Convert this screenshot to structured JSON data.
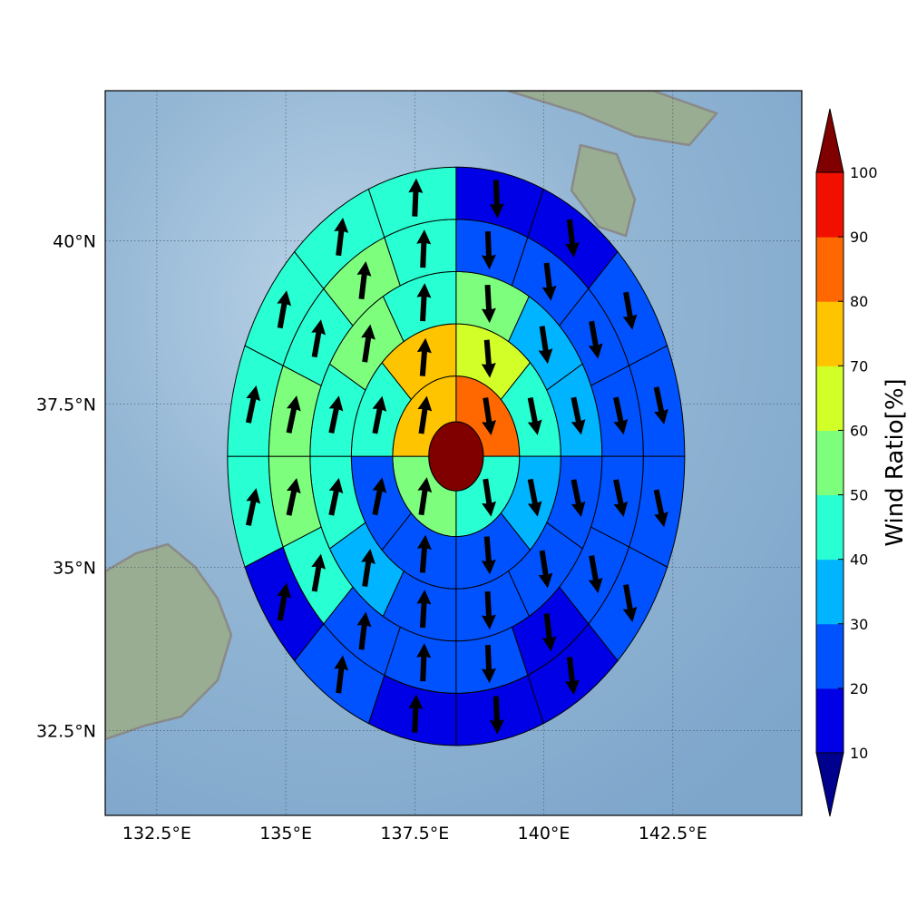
{
  "chart_data": {
    "type": "heatmap",
    "projection": "polar sectors on lon/lat map",
    "xlim": [
      131.5,
      145.0
    ],
    "ylim": [
      31.2,
      42.3
    ],
    "grid": true,
    "x_ticks": [
      {
        "value": 132.5,
        "label": "132.5°E"
      },
      {
        "value": 135.0,
        "label": "135°E"
      },
      {
        "value": 137.5,
        "label": "137.5°E"
      },
      {
        "value": 140.0,
        "label": "140°E"
      },
      {
        "value": 142.5,
        "label": "142.5°E"
      }
    ],
    "y_ticks": [
      {
        "value": 32.5,
        "label": "32.5°N"
      },
      {
        "value": 35.0,
        "label": "35°N"
      },
      {
        "value": 37.5,
        "label": "37.5°N"
      },
      {
        "value": 40.0,
        "label": "40°N"
      }
    ],
    "center": {
      "lon": 138.3,
      "lat": 36.7
    },
    "rings_deg": [
      0.53,
      1.23,
      2.03,
      2.83,
      3.63,
      4.43
    ],
    "sector_counts": [
      1,
      4,
      8,
      12,
      16,
      16
    ],
    "ratios": [
      [
        100
      ],
      [
        85,
        45,
        55,
        75
      ],
      [
        65,
        45,
        35,
        25,
        25,
        25,
        45,
        75
      ],
      [
        55,
        35,
        35,
        25,
        25,
        25,
        25,
        35,
        45,
        45,
        55,
        45
      ],
      [
        25,
        25,
        25,
        25,
        25,
        25,
        15,
        25,
        25,
        25,
        45,
        55,
        55,
        45,
        55,
        45
      ],
      [
        15,
        15,
        25,
        25,
        25,
        25,
        15,
        15,
        15,
        25,
        15,
        45,
        45,
        45,
        45,
        45
      ]
    ],
    "colorbar": {
      "label": "Wind Ratio[%]",
      "tick_values": [
        10,
        20,
        30,
        40,
        50,
        60,
        70,
        80,
        90,
        100
      ],
      "tick_labels": [
        "10",
        "20",
        "30",
        "40",
        "50",
        "60",
        "70",
        "80",
        "90",
        "100"
      ],
      "extend": "both",
      "colors": [
        "#0000e6",
        "#0052ff",
        "#00b4ff",
        "#28ffd2",
        "#7dff7d",
        "#d2ff28",
        "#ffc400",
        "#ff6800",
        "#f11000"
      ],
      "under_color": "#00008f",
      "over_color": "#800000"
    }
  }
}
